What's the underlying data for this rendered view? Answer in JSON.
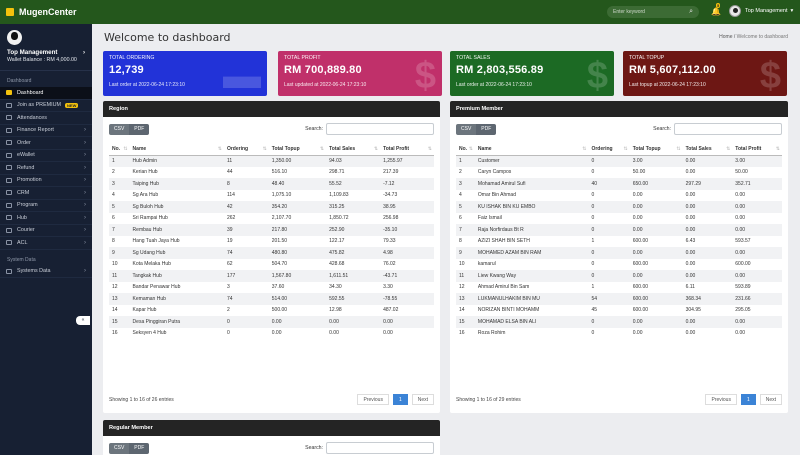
{
  "app": {
    "brand": "MugenCenter"
  },
  "topbar": {
    "search_placeholder": "Enter keyword",
    "notification_count": "5",
    "user_name": "Top Management"
  },
  "sidebar": {
    "profile_name": "Top Management",
    "wallet": "Wallet Balance : RM 4,000.00",
    "section_dashboard": "Dashboard",
    "section_system": "System Data",
    "collapse_label": "«",
    "items": [
      {
        "label": "Dashboard"
      },
      {
        "label": "Join as PREMIUM",
        "badge": "NEW"
      },
      {
        "label": "Attendances"
      },
      {
        "label": "Finance Report"
      },
      {
        "label": "Order"
      },
      {
        "label": "eWallet"
      },
      {
        "label": "Refund"
      },
      {
        "label": "Promotion"
      },
      {
        "label": "CRM"
      },
      {
        "label": "Program"
      },
      {
        "label": "Hub"
      },
      {
        "label": "Courier"
      },
      {
        "label": "ACL"
      }
    ],
    "system_items": [
      {
        "label": "Systems Data"
      }
    ]
  },
  "page": {
    "title": "Welcome to dashboard",
    "breadcrumb_home": "Home",
    "breadcrumb_current": "Welcome to dashboard"
  },
  "stats": [
    {
      "label": "TOTAL ORDERING",
      "value": "12,739",
      "foot": "Last order at 2022-06-24 17:23:10"
    },
    {
      "label": "TOTAL PROFIT",
      "value": "RM 700,889.80",
      "foot": "Last updated at 2022-06-24 17:23:10"
    },
    {
      "label": "TOTAL SALES",
      "value": "RM 2,803,556.89",
      "foot": "Last order at 2022-06-24 17:23:10"
    },
    {
      "label": "TOTAL TOPUP",
      "value": "RM 5,607,112.00",
      "foot": "Last topup at 2022-06-24 17:23:10"
    }
  ],
  "region": {
    "title": "Region",
    "csv": "CSV",
    "pdf": "PDF",
    "search_label": "Search:",
    "columns": [
      "No.",
      "Name",
      "Ordering",
      "Total Topup",
      "Total Sales",
      "Total Profit"
    ],
    "rows": [
      [
        "1",
        "Hub Admin",
        "11",
        "1,350.00",
        "94.03",
        "1,255.97"
      ],
      [
        "2",
        "Kerian Hub",
        "44",
        "516.10",
        "298.71",
        "217.39"
      ],
      [
        "3",
        "Taiping Hub",
        "8",
        "48.40",
        "55.52",
        "-7.12"
      ],
      [
        "4",
        "Sg Ara Hub",
        "114",
        "1,075.10",
        "1,109.83",
        "-34.73"
      ],
      [
        "5",
        "Sg Buloh Hub",
        "42",
        "354.20",
        "315.25",
        "38.95"
      ],
      [
        "6",
        "Sri Rampai Hub",
        "262",
        "2,107.70",
        "1,850.72",
        "256.98"
      ],
      [
        "7",
        "Rembau Hub",
        "39",
        "217.80",
        "252.90",
        "-35.10"
      ],
      [
        "8",
        "Hang Tuah Jaya Hub",
        "19",
        "201.50",
        "122.17",
        "79.33"
      ],
      [
        "9",
        "Sg Udang Hub",
        "74",
        "480.80",
        "475.82",
        "4.98"
      ],
      [
        "10",
        "Kota Melaka Hub",
        "62",
        "504.70",
        "428.68",
        "76.02"
      ],
      [
        "11",
        "Tangkak Hub",
        "177",
        "1,567.80",
        "1,611.51",
        "-43.71"
      ],
      [
        "12",
        "Bandar Penawar Hub",
        "3",
        "37.60",
        "34.30",
        "3.30"
      ],
      [
        "13",
        "Kemaman Hub",
        "74",
        "514.00",
        "592.55",
        "-78.55"
      ],
      [
        "14",
        "Kapar Hub",
        "2",
        "500.00",
        "12.98",
        "487.02"
      ],
      [
        "15",
        "Desa Pinggiran Putra",
        "0",
        "0.00",
        "0.00",
        "0.00"
      ],
      [
        "16",
        "Seksyen 4 Hub",
        "0",
        "0.00",
        "0.00",
        "0.00"
      ]
    ],
    "info": "Showing 1 to 16 of 26 entries",
    "prev": "Previous",
    "page": "1",
    "next": "Next"
  },
  "premium": {
    "title": "Premium Member",
    "csv": "CSV",
    "pdf": "PDF",
    "search_label": "Search:",
    "columns": [
      "No.",
      "Name",
      "Ordering",
      "Total Topup",
      "Total Sales",
      "Total Profit"
    ],
    "rows": [
      [
        "1",
        "Customer",
        "0",
        "3.00",
        "0.00",
        "3.00"
      ],
      [
        "2",
        "Caryn Campos",
        "0",
        "50.00",
        "0.00",
        "50.00"
      ],
      [
        "3",
        "Mohamad Amirul Sufi",
        "40",
        "650.00",
        "297.29",
        "352.71"
      ],
      [
        "4",
        "Omar Bin Ahmad",
        "0",
        "0.00",
        "0.00",
        "0.00"
      ],
      [
        "5",
        "KU ISHAK BIN KU EMBO",
        "0",
        "0.00",
        "0.00",
        "0.00"
      ],
      [
        "6",
        "Faiz Ismail",
        "0",
        "0.00",
        "0.00",
        "0.00"
      ],
      [
        "7",
        "Raja Norfirdaus Bt R",
        "0",
        "0.00",
        "0.00",
        "0.00"
      ],
      [
        "8",
        "AZIZI SHAH BIN SETH",
        "1",
        "600.00",
        "6.43",
        "593.57"
      ],
      [
        "9",
        "MOHAMED AZAM BIN RAM",
        "0",
        "0.00",
        "0.00",
        "0.00"
      ],
      [
        "10",
        "kamarul",
        "0",
        "600.00",
        "0.00",
        "600.00"
      ],
      [
        "11",
        "Liew Kwang Way",
        "0",
        "0.00",
        "0.00",
        "0.00"
      ],
      [
        "12",
        "Ahmad Amirul Bin Sam",
        "1",
        "600.00",
        "6.11",
        "593.89"
      ],
      [
        "13",
        "LUKMANULHAKIM BIN MU",
        "54",
        "600.00",
        "368.34",
        "231.66"
      ],
      [
        "14",
        "NORIZAN BINTI MOHAMM",
        "45",
        "600.00",
        "304.95",
        "295.05"
      ],
      [
        "15",
        "MOHAMAD ELSA BIN ALI",
        "0",
        "0.00",
        "0.00",
        "0.00"
      ],
      [
        "16",
        "Roza Rohim",
        "0",
        "0.00",
        "0.00",
        "0.00"
      ]
    ],
    "info": "Showing 1 to 16 of 29 entries",
    "prev": "Previous",
    "page": "1",
    "next": "Next"
  },
  "regular": {
    "title": "Regular Member",
    "csv": "CSV",
    "pdf": "PDF",
    "search_label": "Search:"
  }
}
